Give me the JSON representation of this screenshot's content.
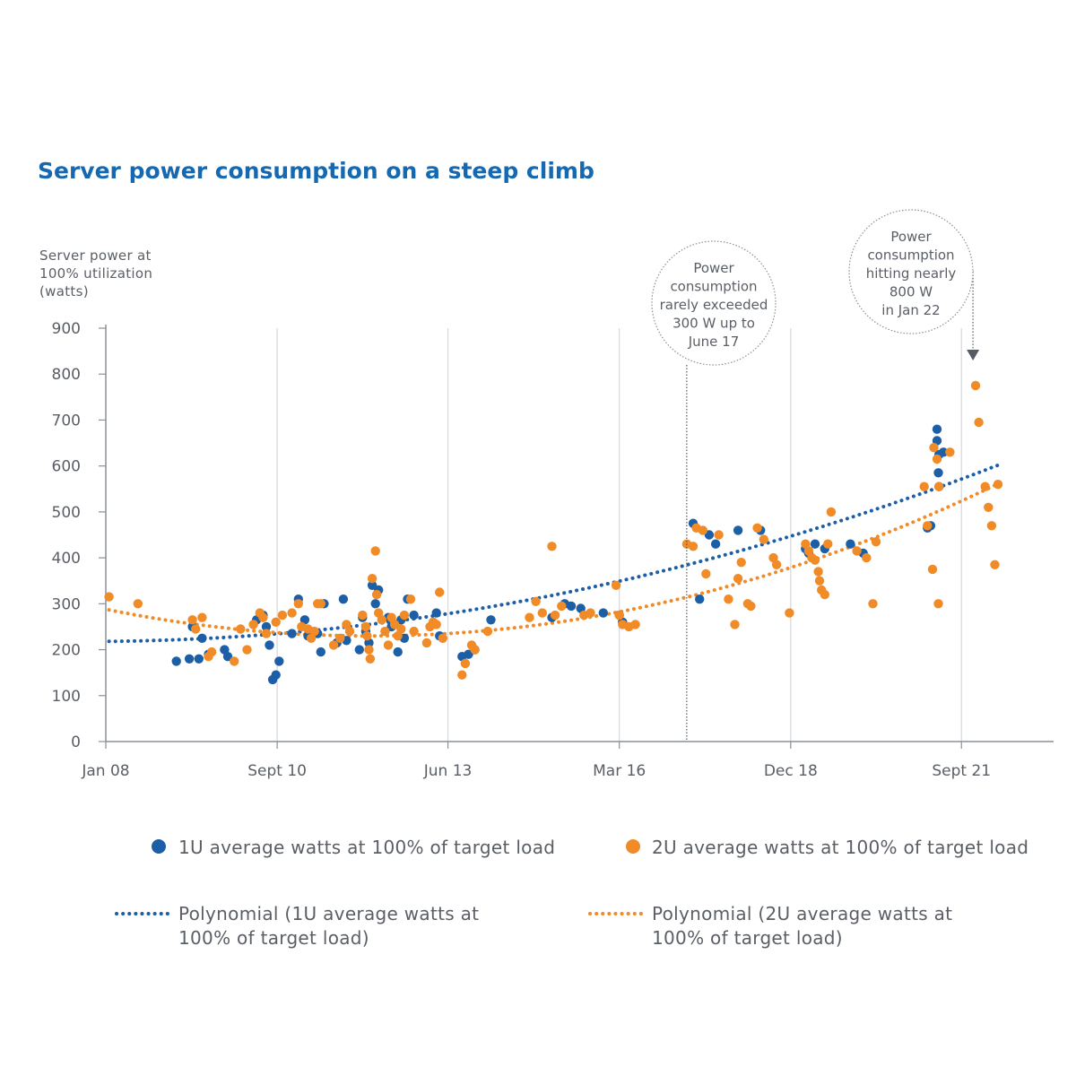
{
  "colors": {
    "u1": "#1d5fa6",
    "u2": "#f08b27",
    "grid": "#d5d8dd",
    "axis": "#8a9099",
    "text": "#5a5f66",
    "title": "#1668b0"
  },
  "chart_data": {
    "type": "scatter",
    "title": "Server power consumption on a steep climb",
    "ylabel_lines": [
      "Server power at",
      "100% utilization",
      "(watts)"
    ],
    "xlabel": "",
    "ylim": [
      0,
      900
    ],
    "yticks": [
      "0",
      "100",
      "200",
      "300",
      "400",
      "500",
      "600",
      "700",
      "800",
      "900"
    ],
    "xlim": [
      2008.0,
      2022.5
    ],
    "xticks": [
      {
        "label": "Jan 08",
        "x": 2008.0
      },
      {
        "label": "Sept 10",
        "x": 2010.67
      },
      {
        "label": "Jun 13",
        "x": 2013.33
      },
      {
        "label": "Mar 16",
        "x": 2016.0
      },
      {
        "label": "Dec 18",
        "x": 2018.67
      },
      {
        "label": "Sept 21",
        "x": 2021.33
      }
    ],
    "series": [
      {
        "name": "1U average watts at 100% of target load",
        "color_key": "u1",
        "points": [
          [
            2009.1,
            175
          ],
          [
            2009.3,
            180
          ],
          [
            2009.45,
            180
          ],
          [
            2009.35,
            250
          ],
          [
            2009.5,
            225
          ],
          [
            2009.6,
            190
          ],
          [
            2009.85,
            200
          ],
          [
            2009.9,
            185
          ],
          [
            2010.35,
            265
          ],
          [
            2010.45,
            275
          ],
          [
            2010.5,
            250
          ],
          [
            2010.55,
            210
          ],
          [
            2010.6,
            135
          ],
          [
            2010.65,
            145
          ],
          [
            2010.7,
            175
          ],
          [
            2010.9,
            235
          ],
          [
            2011.0,
            310
          ],
          [
            2011.1,
            265
          ],
          [
            2011.15,
            230
          ],
          [
            2011.3,
            235
          ],
          [
            2011.35,
            195
          ],
          [
            2011.4,
            300
          ],
          [
            2011.6,
            215
          ],
          [
            2011.7,
            310
          ],
          [
            2011.75,
            220
          ],
          [
            2011.95,
            200
          ],
          [
            2012.0,
            270
          ],
          [
            2012.05,
            240
          ],
          [
            2012.1,
            215
          ],
          [
            2012.15,
            340
          ],
          [
            2012.2,
            300
          ],
          [
            2012.25,
            330
          ],
          [
            2012.4,
            270
          ],
          [
            2012.45,
            250
          ],
          [
            2012.55,
            195
          ],
          [
            2012.6,
            265
          ],
          [
            2012.7,
            310
          ],
          [
            2012.65,
            225
          ],
          [
            2012.8,
            275
          ],
          [
            2013.15,
            280
          ],
          [
            2013.2,
            230
          ],
          [
            2013.55,
            185
          ],
          [
            2013.65,
            190
          ],
          [
            2013.75,
            200
          ],
          [
            2014.0,
            265
          ],
          [
            2014.95,
            270
          ],
          [
            2015.15,
            300
          ],
          [
            2015.25,
            295
          ],
          [
            2015.4,
            290
          ],
          [
            2015.75,
            280
          ],
          [
            2016.0,
            275
          ],
          [
            2016.05,
            260
          ],
          [
            2017.15,
            475
          ],
          [
            2017.25,
            310
          ],
          [
            2017.4,
            450
          ],
          [
            2017.5,
            430
          ],
          [
            2017.85,
            460
          ],
          [
            2018.2,
            460
          ],
          [
            2018.9,
            420
          ],
          [
            2018.95,
            410
          ],
          [
            2019.05,
            430
          ],
          [
            2019.2,
            420
          ],
          [
            2019.6,
            430
          ],
          [
            2019.8,
            410
          ],
          [
            2020.8,
            465
          ],
          [
            2020.85,
            470
          ],
          [
            2020.95,
            680
          ],
          [
            2020.95,
            655
          ],
          [
            2020.98,
            625
          ],
          [
            2020.97,
            585
          ],
          [
            2020.98,
            555
          ],
          [
            2021.05,
            630
          ]
        ]
      },
      {
        "name": "2U average watts at 100% of target load",
        "color_key": "u2",
        "points": [
          [
            2008.05,
            315
          ],
          [
            2008.5,
            300
          ],
          [
            2009.35,
            265
          ],
          [
            2009.4,
            245
          ],
          [
            2009.5,
            270
          ],
          [
            2009.65,
            195
          ],
          [
            2009.6,
            185
          ],
          [
            2010.0,
            175
          ],
          [
            2010.1,
            245
          ],
          [
            2010.2,
            200
          ],
          [
            2010.3,
            255
          ],
          [
            2010.4,
            280
          ],
          [
            2010.45,
            270
          ],
          [
            2010.5,
            235
          ],
          [
            2010.65,
            260
          ],
          [
            2010.75,
            275
          ],
          [
            2010.9,
            280
          ],
          [
            2011.0,
            300
          ],
          [
            2011.05,
            250
          ],
          [
            2011.15,
            245
          ],
          [
            2011.2,
            225
          ],
          [
            2011.25,
            240
          ],
          [
            2011.3,
            300
          ],
          [
            2011.35,
            300
          ],
          [
            2011.55,
            210
          ],
          [
            2011.65,
            225
          ],
          [
            2011.75,
            255
          ],
          [
            2011.8,
            240
          ],
          [
            2012.0,
            275
          ],
          [
            2012.05,
            250
          ],
          [
            2012.07,
            230
          ],
          [
            2012.1,
            200
          ],
          [
            2012.12,
            180
          ],
          [
            2012.15,
            355
          ],
          [
            2012.2,
            415
          ],
          [
            2012.22,
            320
          ],
          [
            2012.25,
            280
          ],
          [
            2012.3,
            265
          ],
          [
            2012.35,
            240
          ],
          [
            2012.4,
            210
          ],
          [
            2012.45,
            270
          ],
          [
            2012.5,
            255
          ],
          [
            2012.55,
            230
          ],
          [
            2012.6,
            245
          ],
          [
            2012.65,
            275
          ],
          [
            2012.75,
            310
          ],
          [
            2012.8,
            240
          ],
          [
            2013.0,
            215
          ],
          [
            2013.05,
            250
          ],
          [
            2013.1,
            260
          ],
          [
            2013.15,
            255
          ],
          [
            2013.2,
            325
          ],
          [
            2013.25,
            225
          ],
          [
            2013.55,
            145
          ],
          [
            2013.6,
            170
          ],
          [
            2013.7,
            210
          ],
          [
            2013.75,
            200
          ],
          [
            2013.95,
            240
          ],
          [
            2014.6,
            270
          ],
          [
            2014.7,
            305
          ],
          [
            2014.8,
            280
          ],
          [
            2014.95,
            425
          ],
          [
            2015.0,
            275
          ],
          [
            2015.1,
            295
          ],
          [
            2015.45,
            275
          ],
          [
            2015.55,
            280
          ],
          [
            2015.95,
            340
          ],
          [
            2016.0,
            275
          ],
          [
            2016.05,
            255
          ],
          [
            2016.15,
            250
          ],
          [
            2016.25,
            255
          ],
          [
            2017.05,
            430
          ],
          [
            2017.15,
            425
          ],
          [
            2017.2,
            465
          ],
          [
            2017.3,
            460
          ],
          [
            2017.35,
            365
          ],
          [
            2017.55,
            450
          ],
          [
            2017.7,
            310
          ],
          [
            2017.8,
            255
          ],
          [
            2017.85,
            355
          ],
          [
            2017.9,
            390
          ],
          [
            2018.0,
            300
          ],
          [
            2018.05,
            295
          ],
          [
            2018.15,
            465
          ],
          [
            2018.25,
            440
          ],
          [
            2018.4,
            400
          ],
          [
            2018.45,
            385
          ],
          [
            2018.65,
            280
          ],
          [
            2018.9,
            430
          ],
          [
            2018.95,
            415
          ],
          [
            2019.0,
            400
          ],
          [
            2019.05,
            395
          ],
          [
            2019.1,
            370
          ],
          [
            2019.12,
            350
          ],
          [
            2019.15,
            330
          ],
          [
            2019.2,
            320
          ],
          [
            2019.25,
            430
          ],
          [
            2019.3,
            500
          ],
          [
            2019.7,
            415
          ],
          [
            2019.85,
            400
          ],
          [
            2019.95,
            300
          ],
          [
            2020.0,
            435
          ],
          [
            2020.75,
            555
          ],
          [
            2020.8,
            470
          ],
          [
            2020.88,
            375
          ],
          [
            2020.9,
            640
          ],
          [
            2020.95,
            615
          ],
          [
            2020.97,
            300
          ],
          [
            2020.98,
            555
          ],
          [
            2021.15,
            630
          ],
          [
            2021.55,
            775
          ],
          [
            2021.6,
            695
          ],
          [
            2021.7,
            555
          ],
          [
            2021.75,
            510
          ],
          [
            2021.8,
            470
          ],
          [
            2021.85,
            385
          ],
          [
            2021.9,
            560
          ]
        ]
      }
    ],
    "trendlines": [
      {
        "name": "Polynomial (1U average watts at 100% of target load)",
        "color_key": "u1",
        "x_from": 2008.05,
        "x_to": 2021.95,
        "coeffs": [
          218,
          1.2,
          1.9
        ]
      },
      {
        "name": "Polynomial (2U average watts at 100% of target load)",
        "color_key": "u2",
        "x_from": 2008.05,
        "x_to": 2021.95,
        "coeffs": [
          288,
          -28.3,
          3.45
        ]
      }
    ],
    "annotations": [
      {
        "lines": [
          "Power",
          "consumption",
          "rarely exceeded",
          "300 W up to",
          "June 17"
        ],
        "x": 2017.05
      },
      {
        "lines": [
          "Power",
          "consumption",
          "hitting nearly",
          "800 W",
          "in Jan 22"
        ],
        "x": 2021.33
      }
    ],
    "legend": {
      "placement": "bottom",
      "scatter": [
        {
          "label": "1U average watts at 100% of target load",
          "color_key": "u1"
        },
        {
          "label": "2U average watts at 100% of target load",
          "color_key": "u2"
        }
      ],
      "lines": [
        {
          "label_lines": [
            "Polynomial (1U average watts at",
            "100% of target load)"
          ],
          "color_key": "u1"
        },
        {
          "label_lines": [
            "Polynomial (2U average watts at",
            "100% of target load)"
          ],
          "color_key": "u2"
        }
      ]
    }
  }
}
